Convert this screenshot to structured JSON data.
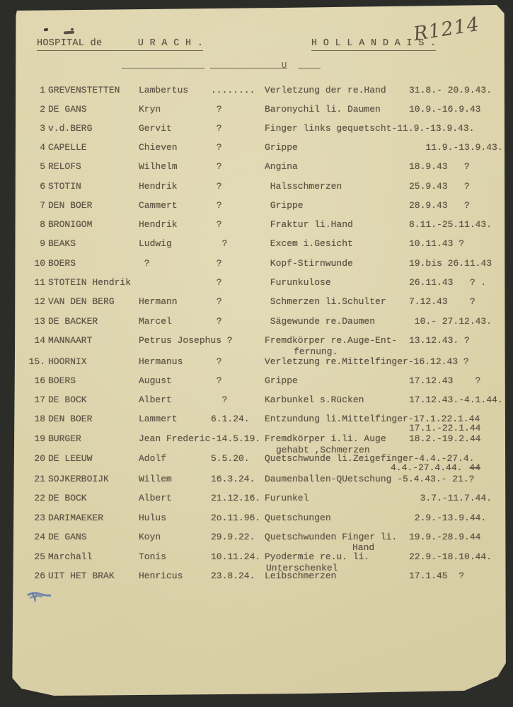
{
  "document": {
    "header": {
      "left": "HOSPITAL de      U R A C H .",
      "right": "H O L L A N D A I S .",
      "handwritten_ref": "R1214",
      "divider_mark": "U"
    },
    "rows": [
      {
        "n": "1",
        "name": "GREVENSTETTEN",
        "first": "Lambertus",
        "c3": "........",
        "diag": "Verletzung der re.Hand",
        "dates": "31.8.- 20.9.43."
      },
      {
        "n": "2",
        "name": "DE GANS",
        "first": "Kryn",
        "c3": " ?",
        "diag": "Baronychil li. Daumen",
        "dates": "10.9.-16.9.43"
      },
      {
        "n": "3",
        "name": "v.d.BERG",
        "first": "Gervit",
        "c3": " ?",
        "diag": "Finger links gequetscht-11.9.-13.9.43.",
        "dates": ""
      },
      {
        "n": "4",
        "name": "CAPELLE",
        "first": "Chieven",
        "c3": " ?",
        "diag": "Grippe",
        "dates": "   11.9.-13.9.43."
      },
      {
        "n": "5",
        "name": "RELOFS",
        "first": "Wilhelm",
        "c3": " ?",
        "diag": "Angina",
        "dates": "18.9.43   ?"
      },
      {
        "n": "6",
        "name": "STOTIN",
        "first": "Hendrik",
        "c3": " ?",
        "diag": " Halsschmerzen",
        "dates": "25.9.43   ?"
      },
      {
        "n": "7",
        "name": "DEN BOER",
        "first": "Cammert",
        "c3": " ?",
        "diag": " Grippe",
        "dates": "28.9.43   ?"
      },
      {
        "n": "8",
        "name": "BRONIGOM",
        "first": "Hendrik",
        "c3": " ?",
        "diag": " Fraktur li.Hand",
        "dates": "8.11.-25.11.43."
      },
      {
        "n": "9",
        "name": "BEAKS",
        "first": "Ludwig",
        "c3": "  ?",
        "diag": " Excem i.Gesicht",
        "dates": "10.11.43 ?"
      },
      {
        "n": "10",
        "name": "BOERS",
        "first": " ?",
        "c3": " ?",
        "diag": " Kopf-Stirnwunde",
        "dates": "19.bis 26.11.43"
      },
      {
        "n": "11",
        "name": "STOTEIN Hendrik",
        "first": "",
        "c3": " ?",
        "diag": " Furunkulose",
        "dates": "26.11.43   ? ."
      },
      {
        "n": "12",
        "name": "VAN DEN BERG",
        "first": "Hermann",
        "c3": " ?",
        "diag": " Schmerzen li.Schulter",
        "dates": "7.12.43    ?"
      },
      {
        "n": "13",
        "name": "DE BACKER",
        "first": "Marcel",
        "c3": " ?",
        "diag": " Sägewunde re.Daumen",
        "dates": " 10.- 27.12.43."
      },
      {
        "n": "14",
        "name": "MANNAART",
        "first": "Petrus Josephus",
        "c3": " ?",
        "diag": "Fremdkörper re.Auge-Ent-",
        "diag2": "fernung.",
        "dates": "13.12.43. ?"
      },
      {
        "n": "15.",
        "name": "HOORNIX",
        "first": "Hermanus",
        "c3": " ?",
        "diag": "Verletzung re.Mittelfinger-16.12.43 ?",
        "dates": ""
      },
      {
        "n": "16",
        "name": "BOERS",
        "first": "August",
        "c3": " ?",
        "diag": "Grippe",
        "dates": "17.12.43    ?"
      },
      {
        "n": "17",
        "name": "DE BOCK",
        "first": "Albert",
        "c3": "  ?",
        "diag": "Karbunkel s.Rücken",
        "dates": "17.12.43.-4.1.44."
      },
      {
        "n": "18",
        "name": "DEN BOER",
        "first": "Lammert",
        "c3": "6.1.24.",
        "diag": "Entzundung li.Mittelfinger-17.1.22.1.44",
        "dates": "",
        "dates2": "17.1.-22.1.44"
      },
      {
        "n": "19",
        "name": "BURGER",
        "first": "Jean Frederic",
        "c3": "-14.5.19.",
        "diag": "Fremdkörper i.li. Auge",
        "diag2": "gehabt ,Schmerzen",
        "dates": "18.2.-19.2.44"
      },
      {
        "n": "20",
        "name": "DE LEEUW",
        "first": "Adolf",
        "c3": "5.5.20.",
        "diag": "Quetschwunde li.Zeigefinger-4.4.-27.4.",
        "dates": "",
        "dates2": "4.4.-27.4.44.",
        "dates2_struck": "44"
      },
      {
        "n": "21",
        "name": "SOJKERBOIJK",
        "first": "Willem",
        "c3": "16.3.24.",
        "diag": "Daumenballen-QUetschung -5.4.43.- 21.?",
        "dates": ""
      },
      {
        "n": "22",
        "name": "DE BOCK",
        "first": "Albert",
        "c3": "21.12.16.",
        "diag": "Furunkel",
        "dates": "  3.7.-11.7.44."
      },
      {
        "n": "23",
        "name": "DARIMAEKER",
        "first": "Hulus",
        "c3": "2o.11.96.",
        "diag": "Quetschungen",
        "dates": " 2.9.-13.9.44."
      },
      {
        "n": "24",
        "name": "DE GANS",
        "first": "Koyn",
        "c3": "29.9.22.",
        "diag": "Quetschwunden Finger li.",
        "diag2": "Hand",
        "dates": "19.9.-28.9.44"
      },
      {
        "n": "25",
        "name": "Marchall",
        "first": "Tonis",
        "c3": "10.11.24.",
        "diag": "Pyodermie re.u. li.",
        "diag2": "Unterschenkel",
        "dates": "22.9.-18.10.44."
      },
      {
        "n": "26",
        "name": "UIT HET BRAK",
        "first": "Henricus",
        "c3": "23.8.24.",
        "diag": "Leibschmerzen",
        "dates": "17.1.45  ?"
      }
    ]
  },
  "colors": {
    "background": "#2c2c29",
    "paper": "#dcd3ab",
    "ink": "#5d5445",
    "handwriting": "#4e4335",
    "blue_mark": "#4c6ea8"
  }
}
